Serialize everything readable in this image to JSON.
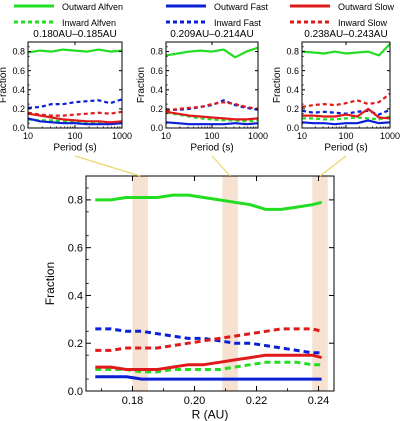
{
  "legend": [
    {
      "key": "outward_alfven",
      "label": "Outward Alfven",
      "color": "#22dd22",
      "dash": false
    },
    {
      "key": "outward_fast",
      "label": "Outward Fast",
      "color": "#0a1fd6",
      "dash": false
    },
    {
      "key": "outward_slow",
      "label": "Outward Slow",
      "color": "#e01a1a",
      "dash": false
    },
    {
      "key": "inward_alfven",
      "label": "Inward Alfven",
      "color": "#22dd22",
      "dash": true
    },
    {
      "key": "inward_fast",
      "label": "Inward Fast",
      "color": "#0a1fd6",
      "dash": true
    },
    {
      "key": "inward_slow",
      "label": "Inward Slow",
      "color": "#e01a1a",
      "dash": true
    }
  ],
  "highlight_color": "#f5d9c4",
  "chart_data": [
    {
      "type": "line",
      "title": "0.180AU–0.185AU",
      "xlabel": "Period (s)",
      "ylabel": "Fraction",
      "xscale": "log",
      "xlim": [
        10,
        1000
      ],
      "ylim": [
        0,
        0.9
      ],
      "xticks": [
        10,
        100,
        1000
      ],
      "yticks": [
        0.0,
        0.2,
        0.4,
        0.6,
        0.8
      ],
      "x": [
        10,
        18,
        32,
        56,
        100,
        180,
        320,
        560,
        1000
      ],
      "series": [
        {
          "key": "outward_alfven",
          "values": [
            0.79,
            0.81,
            0.8,
            0.82,
            0.81,
            0.8,
            0.82,
            0.8,
            0.81
          ]
        },
        {
          "key": "inward_alfven",
          "values": [
            0.09,
            0.08,
            0.08,
            0.07,
            0.06,
            0.05,
            0.05,
            0.05,
            0.06
          ]
        },
        {
          "key": "outward_fast",
          "values": [
            0.1,
            0.07,
            0.06,
            0.05,
            0.05,
            0.04,
            0.04,
            0.04,
            0.05
          ]
        },
        {
          "key": "inward_fast",
          "values": [
            0.21,
            0.22,
            0.25,
            0.25,
            0.27,
            0.28,
            0.29,
            0.26,
            0.3
          ]
        },
        {
          "key": "outward_slow",
          "values": [
            0.15,
            0.13,
            0.11,
            0.09,
            0.08,
            0.07,
            0.07,
            0.06,
            0.07
          ]
        },
        {
          "key": "inward_slow",
          "values": [
            0.16,
            0.14,
            0.13,
            0.13,
            0.14,
            0.15,
            0.16,
            0.15,
            0.17
          ]
        }
      ]
    },
    {
      "type": "line",
      "title": "0.209AU–0.214AU",
      "xlabel": "Period (s)",
      "ylabel": "Fraction",
      "xscale": "log",
      "xlim": [
        10,
        1000
      ],
      "ylim": [
        0,
        0.9
      ],
      "xticks": [
        10,
        100,
        1000
      ],
      "yticks": [
        0.0,
        0.2,
        0.4,
        0.6,
        0.8
      ],
      "x": [
        10,
        18,
        32,
        56,
        100,
        180,
        320,
        560,
        1000
      ],
      "series": [
        {
          "key": "outward_alfven",
          "values": [
            0.76,
            0.78,
            0.8,
            0.81,
            0.8,
            0.82,
            0.74,
            0.8,
            0.84
          ]
        },
        {
          "key": "inward_alfven",
          "values": [
            0.16,
            0.14,
            0.12,
            0.1,
            0.09,
            0.08,
            0.08,
            0.07,
            0.08
          ]
        },
        {
          "key": "outward_fast",
          "values": [
            0.06,
            0.05,
            0.04,
            0.04,
            0.04,
            0.04,
            0.05,
            0.04,
            0.05
          ]
        },
        {
          "key": "inward_fast",
          "values": [
            0.19,
            0.19,
            0.2,
            0.22,
            0.24,
            0.29,
            0.24,
            0.21,
            0.19
          ]
        },
        {
          "key": "outward_slow",
          "values": [
            0.17,
            0.15,
            0.13,
            0.12,
            0.11,
            0.1,
            0.09,
            0.09,
            0.1
          ]
        },
        {
          "key": "inward_slow",
          "values": [
            0.18,
            0.2,
            0.21,
            0.22,
            0.25,
            0.27,
            0.25,
            0.22,
            0.2
          ]
        }
      ]
    },
    {
      "type": "line",
      "title": "0.238AU–0.243AU",
      "xlabel": "Period (s)",
      "ylabel": "Fraction",
      "xscale": "log",
      "xlim": [
        10,
        1000
      ],
      "ylim": [
        0,
        0.9
      ],
      "xticks": [
        10,
        100,
        1000
      ],
      "yticks": [
        0.0,
        0.2,
        0.4,
        0.6,
        0.8
      ],
      "x": [
        10,
        18,
        32,
        56,
        100,
        180,
        320,
        560,
        1000
      ],
      "series": [
        {
          "key": "outward_alfven",
          "values": [
            0.8,
            0.79,
            0.78,
            0.8,
            0.78,
            0.79,
            0.8,
            0.76,
            0.88
          ]
        },
        {
          "key": "inward_alfven",
          "values": [
            0.1,
            0.1,
            0.09,
            0.09,
            0.1,
            0.11,
            0.1,
            0.09,
            0.12
          ]
        },
        {
          "key": "outward_fast",
          "values": [
            0.06,
            0.05,
            0.05,
            0.04,
            0.05,
            0.05,
            0.08,
            0.05,
            0.06
          ]
        },
        {
          "key": "inward_fast",
          "values": [
            0.18,
            0.16,
            0.17,
            0.16,
            0.15,
            0.17,
            0.18,
            0.14,
            0.19
          ]
        },
        {
          "key": "outward_slow",
          "values": [
            0.13,
            0.13,
            0.12,
            0.12,
            0.14,
            0.12,
            0.2,
            0.11,
            0.1
          ]
        },
        {
          "key": "inward_slow",
          "values": [
            0.22,
            0.24,
            0.25,
            0.24,
            0.26,
            0.29,
            0.25,
            0.27,
            0.36
          ]
        }
      ]
    },
    {
      "type": "line",
      "title": "",
      "xlabel": "R (AU)",
      "ylabel": "Fraction",
      "xlim": [
        0.165,
        0.245
      ],
      "ylim": [
        0,
        0.9
      ],
      "xticks": [
        0.18,
        0.2,
        0.22,
        0.24
      ],
      "yticks": [
        0.0,
        0.2,
        0.4,
        0.6,
        0.8
      ],
      "highlight_bands": [
        [
          0.18,
          0.185
        ],
        [
          0.209,
          0.214
        ],
        [
          0.238,
          0.243
        ]
      ],
      "x": [
        0.168,
        0.173,
        0.178,
        0.183,
        0.188,
        0.193,
        0.198,
        0.203,
        0.208,
        0.213,
        0.218,
        0.223,
        0.228,
        0.233,
        0.238,
        0.241
      ],
      "series": [
        {
          "key": "outward_alfven",
          "values": [
            0.8,
            0.8,
            0.81,
            0.81,
            0.81,
            0.82,
            0.82,
            0.81,
            0.8,
            0.79,
            0.78,
            0.76,
            0.76,
            0.77,
            0.78,
            0.79
          ]
        },
        {
          "key": "inward_alfven",
          "values": [
            0.09,
            0.09,
            0.09,
            0.08,
            0.08,
            0.09,
            0.09,
            0.09,
            0.09,
            0.1,
            0.11,
            0.12,
            0.12,
            0.12,
            0.11,
            0.11
          ]
        },
        {
          "key": "outward_fast",
          "values": [
            0.06,
            0.06,
            0.06,
            0.05,
            0.05,
            0.05,
            0.05,
            0.05,
            0.05,
            0.05,
            0.05,
            0.05,
            0.05,
            0.05,
            0.05,
            0.05
          ]
        },
        {
          "key": "inward_fast",
          "values": [
            0.26,
            0.26,
            0.25,
            0.25,
            0.24,
            0.23,
            0.22,
            0.22,
            0.21,
            0.2,
            0.2,
            0.19,
            0.18,
            0.17,
            0.16,
            0.16
          ]
        },
        {
          "key": "outward_slow",
          "values": [
            0.1,
            0.1,
            0.09,
            0.09,
            0.09,
            0.1,
            0.11,
            0.11,
            0.12,
            0.13,
            0.14,
            0.15,
            0.15,
            0.15,
            0.15,
            0.14
          ]
        },
        {
          "key": "inward_slow",
          "values": [
            0.17,
            0.17,
            0.18,
            0.18,
            0.18,
            0.19,
            0.2,
            0.21,
            0.22,
            0.23,
            0.24,
            0.25,
            0.26,
            0.26,
            0.26,
            0.25
          ]
        }
      ]
    }
  ]
}
